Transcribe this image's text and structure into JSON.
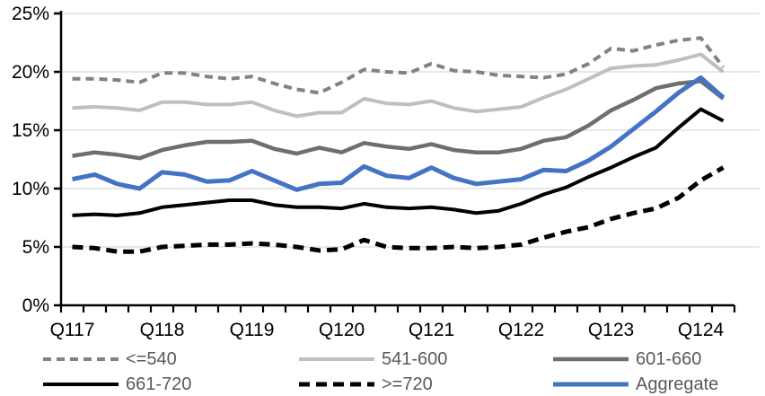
{
  "chart_data": {
    "type": "line",
    "title": "",
    "xlabel": "",
    "ylabel": "",
    "ylim": [
      0,
      25
    ],
    "y_tick_step": 5,
    "y_tick_suffix": "%",
    "y_tick_labels": [
      "0%",
      "5%",
      "10%",
      "15%",
      "20%",
      "25%"
    ],
    "x_shown_tick_labels": [
      "Q117",
      "Q118",
      "Q119",
      "Q120",
      "Q121",
      "Q122",
      "Q123",
      "Q124"
    ],
    "grid": true,
    "legend_position": "bottom",
    "categories": [
      "Q117",
      "Q217",
      "Q317",
      "Q417",
      "Q118",
      "Q218",
      "Q318",
      "Q418",
      "Q119",
      "Q219",
      "Q319",
      "Q419",
      "Q120",
      "Q220",
      "Q320",
      "Q420",
      "Q121",
      "Q221",
      "Q321",
      "Q421",
      "Q122",
      "Q222",
      "Q322",
      "Q422",
      "Q123",
      "Q223",
      "Q323",
      "Q423",
      "Q124",
      "Q224"
    ],
    "series": [
      {
        "name": "<=540",
        "color": "#828282",
        "dash": "9,6",
        "width": 4,
        "values": [
          19.4,
          19.4,
          19.3,
          19.1,
          19.9,
          19.9,
          19.6,
          19.4,
          19.6,
          19.0,
          18.5,
          18.2,
          19.1,
          20.2,
          20.0,
          19.9,
          20.7,
          20.1,
          20.0,
          19.7,
          19.6,
          19.5,
          19.8,
          20.7,
          22.0,
          21.8,
          22.3,
          22.7,
          22.9,
          20.4
        ]
      },
      {
        "name": "541-600",
        "color": "#BFBFBF",
        "dash": "",
        "width": 4,
        "values": [
          16.9,
          17.0,
          16.9,
          16.7,
          17.4,
          17.4,
          17.2,
          17.2,
          17.4,
          16.7,
          16.2,
          16.5,
          16.5,
          17.7,
          17.3,
          17.2,
          17.5,
          16.9,
          16.6,
          16.8,
          17.0,
          17.8,
          18.5,
          19.4,
          20.3,
          20.5,
          20.6,
          21.0,
          21.5,
          20.0
        ]
      },
      {
        "name": "601-660",
        "color": "#6E6E6E",
        "dash": "",
        "width": 4.5,
        "values": [
          12.8,
          13.1,
          12.9,
          12.6,
          13.3,
          13.7,
          14.0,
          14.0,
          14.1,
          13.4,
          13.0,
          13.5,
          13.1,
          13.9,
          13.6,
          13.4,
          13.8,
          13.3,
          13.1,
          13.1,
          13.4,
          14.1,
          14.4,
          15.4,
          16.7,
          17.6,
          18.6,
          19.0,
          19.2,
          17.7
        ]
      },
      {
        "name": "661-720",
        "color": "#000000",
        "dash": "",
        "width": 4,
        "values": [
          7.7,
          7.8,
          7.7,
          7.9,
          8.4,
          8.6,
          8.8,
          9.0,
          9.0,
          8.6,
          8.4,
          8.4,
          8.3,
          8.7,
          8.4,
          8.3,
          8.4,
          8.2,
          7.9,
          8.1,
          8.7,
          9.5,
          10.1,
          11.0,
          11.8,
          12.7,
          13.5,
          15.2,
          16.8,
          15.8
        ]
      },
      {
        "name": ">=720",
        "color": "#000000",
        "dash": "12,7",
        "width": 5,
        "values": [
          5.0,
          4.9,
          4.6,
          4.6,
          5.0,
          5.1,
          5.2,
          5.2,
          5.3,
          5.2,
          5.0,
          4.7,
          4.8,
          5.6,
          5.0,
          4.9,
          4.9,
          5.0,
          4.9,
          5.0,
          5.2,
          5.8,
          6.3,
          6.7,
          7.4,
          7.9,
          8.3,
          9.2,
          10.7,
          11.8
        ]
      },
      {
        "name": "Aggregate",
        "color": "#4472C4",
        "dash": "",
        "width": 5,
        "values": [
          10.8,
          11.2,
          10.4,
          10.0,
          11.4,
          11.2,
          10.6,
          10.7,
          11.5,
          10.7,
          9.9,
          10.4,
          10.5,
          11.9,
          11.1,
          10.9,
          11.8,
          10.9,
          10.4,
          10.6,
          10.8,
          11.6,
          11.5,
          12.4,
          13.6,
          15.1,
          16.6,
          18.2,
          19.5,
          17.8
        ]
      }
    ],
    "colors": {
      "gridline": "#D9D9D9",
      "axis": "#000000",
      "axis_text": "#000000",
      "legend_text": "#595959",
      "background": "#FFFFFF",
      "accent_blue": "#4472C4"
    }
  },
  "legend": {
    "items": [
      {
        "label": "<=540"
      },
      {
        "label": "541-600"
      },
      {
        "label": "601-660"
      },
      {
        "label": "661-720"
      },
      {
        "label": ">=720"
      },
      {
        "label": "Aggregate"
      }
    ]
  }
}
